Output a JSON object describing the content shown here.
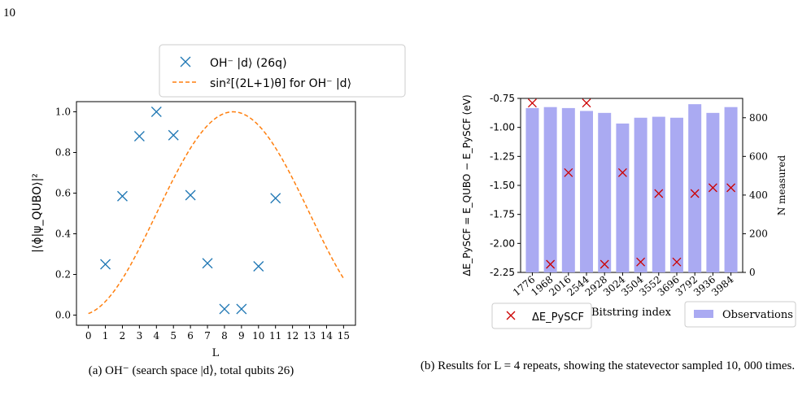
{
  "page_number": "10",
  "caption_a": "(a) OH⁻ (search space |d⟩, total qubits 26)",
  "caption_b": "(b) Results for L = 4 repeats, showing the statevector sampled 10, 000 times.",
  "chart_data": [
    {
      "type": "scatter",
      "xlabel": "L",
      "ylabel": "|⟨ϕ|ψ_QUBO⟩|²",
      "xlim": [
        -0.7,
        15.7
      ],
      "ylim": [
        -0.05,
        1.05
      ],
      "xticks": [
        "0",
        "1",
        "2",
        "3",
        "4",
        "5",
        "6",
        "7",
        "8",
        "9",
        "10",
        "11",
        "12",
        "13",
        "14",
        "15"
      ],
      "yticks": [
        "0.0",
        "0.2",
        "0.4",
        "0.6",
        "0.8",
        "1.0"
      ],
      "legend_position": "top (outside)",
      "series": [
        {
          "name": "OH⁻ |d⟩ (26q)",
          "marker": "x",
          "color": "#1f77b4",
          "x": [
            1,
            2,
            3,
            4,
            5,
            6,
            7,
            8,
            9,
            10,
            11
          ],
          "y": [
            0.25,
            0.585,
            0.88,
            1.0,
            0.885,
            0.59,
            0.255,
            0.03,
            0.03,
            0.24,
            0.575
          ]
        },
        {
          "name": "sin²[(2L+1)θ] for OH⁻ |d⟩",
          "style": "dashed-line",
          "color": "#ff7f0e",
          "theta": 0.0872,
          "x_range": [
            0,
            15
          ]
        }
      ]
    },
    {
      "type": "bar",
      "xlabel": "Bitstring index",
      "ylabel_left": "ΔE_PySCF = E_QUBO − E_PySCF (eV)",
      "ylabel_right": "N measured",
      "categories": [
        "1776",
        "1968",
        "2016",
        "2544",
        "2928",
        "3024",
        "3504",
        "3552",
        "3696",
        "3792",
        "3936",
        "3984"
      ],
      "left_ylim": [
        -2.25,
        -0.75
      ],
      "left_yticks": [
        "-0.75",
        "-1.00",
        "-1.25",
        "-1.50",
        "-1.75",
        "-2.00",
        "-2.25"
      ],
      "right_ylim": [
        0,
        900
      ],
      "right_yticks": [
        "0",
        "200",
        "400",
        "600",
        "800"
      ],
      "series": [
        {
          "name": "Observations",
          "axis": "right",
          "color": "#aaaaf2",
          "values": [
            850,
            855,
            850,
            835,
            825,
            770,
            800,
            805,
            800,
            870,
            825,
            855
          ]
        },
        {
          "name": "ΔE_PySCF",
          "axis": "left",
          "marker": "x",
          "color": "#cc0000",
          "values": [
            -0.79,
            -2.18,
            -1.39,
            -0.79,
            -2.18,
            -1.39,
            -2.16,
            -1.57,
            -2.16,
            -1.57,
            -1.52,
            -1.52
          ]
        }
      ],
      "legend_position": "bottom"
    }
  ]
}
